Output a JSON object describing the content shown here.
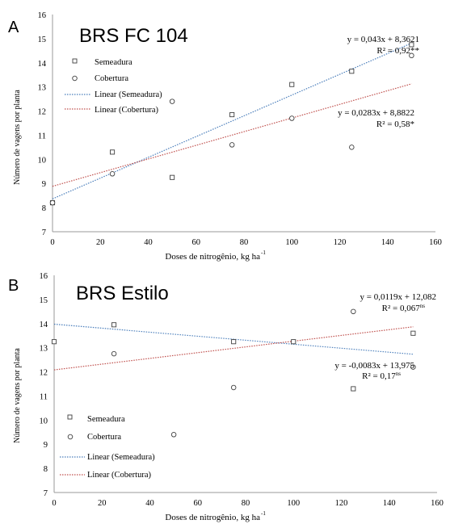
{
  "chart_data": [
    {
      "panel_letter": "A",
      "type": "scatter",
      "title": "BRS FC 104",
      "xlabel": "Doses de nitrogênio,  kg ha",
      "xlabel_sup": "-1",
      "ylabel": "Número de vagens por planta",
      "xlim": [
        0,
        160
      ],
      "ylim": [
        7,
        16
      ],
      "xticks": [
        0,
        20,
        40,
        60,
        80,
        100,
        120,
        140,
        160
      ],
      "yticks": [
        7,
        8,
        9,
        10,
        11,
        12,
        13,
        14,
        15,
        16
      ],
      "grid": false,
      "legend_position": "upper-left",
      "series": [
        {
          "name": "Semeadura",
          "marker": "square",
          "color": "#404040",
          "x": [
            0,
            25,
            50,
            75,
            100,
            125,
            150
          ],
          "y": [
            8.2,
            10.3,
            9.25,
            11.85,
            13.1,
            13.65,
            14.75
          ]
        },
        {
          "name": "Cobertura",
          "marker": "circle",
          "color": "#404040",
          "x": [
            0,
            25,
            50,
            75,
            100,
            125,
            150
          ],
          "y": [
            8.2,
            9.4,
            12.4,
            10.6,
            11.7,
            10.5,
            14.3
          ]
        }
      ],
      "trendlines": [
        {
          "name": "Linear (Semeadura)",
          "slope": 0.043,
          "intercept": 8.3621,
          "color": "#4a7ebb"
        },
        {
          "name": "Linear (Cobertura)",
          "slope": 0.0283,
          "intercept": 8.8822,
          "color": "#c0504d"
        }
      ],
      "annotations": [
        {
          "eq": "y = 0,043x + 8,3621",
          "r2": "R² = 0,92",
          "sig": "**"
        },
        {
          "eq": "y = 0,0283x + 8,8822",
          "r2": "R² = 0,58",
          "sig": "*"
        }
      ]
    },
    {
      "panel_letter": "B",
      "type": "scatter",
      "title": "BRS Estilo",
      "xlabel": "Doses de nitrogênio,  kg ha",
      "xlabel_sup": "-1",
      "ylabel": "Número de vagens por planta",
      "xlim": [
        0,
        160
      ],
      "ylim": [
        7,
        16
      ],
      "xticks": [
        0,
        20,
        40,
        60,
        80,
        100,
        120,
        140,
        160
      ],
      "yticks": [
        7,
        8,
        9,
        10,
        11,
        12,
        13,
        14,
        15,
        16
      ],
      "grid": false,
      "legend_position": "lower-left",
      "series": [
        {
          "name": "Semeadura",
          "marker": "square",
          "color": "#404040",
          "x": [
            0,
            25,
            75,
            100,
            125,
            150
          ],
          "y": [
            13.25,
            13.95,
            13.25,
            13.25,
            11.3,
            13.6
          ]
        },
        {
          "name": "Cobertura",
          "marker": "circle",
          "color": "#404040",
          "x": [
            25,
            50,
            75,
            125,
            150
          ],
          "y": [
            12.75,
            9.4,
            11.35,
            14.5,
            12.2
          ]
        }
      ],
      "trendlines": [
        {
          "name": "Linear (Semeadura)",
          "slope": -0.0083,
          "intercept": 13.975,
          "color": "#4a7ebb"
        },
        {
          "name": "Linear (Cobertura)",
          "slope": 0.0119,
          "intercept": 12.082,
          "color": "#c0504d"
        }
      ],
      "annotations": [
        {
          "eq": "y = 0,0119x + 12,082",
          "r2": "R² = 0,067",
          "sig": "ns"
        },
        {
          "eq": "y = -0,0083x + 13,975",
          "r2": "R² = 0,17",
          "sig": "ns"
        }
      ]
    }
  ]
}
